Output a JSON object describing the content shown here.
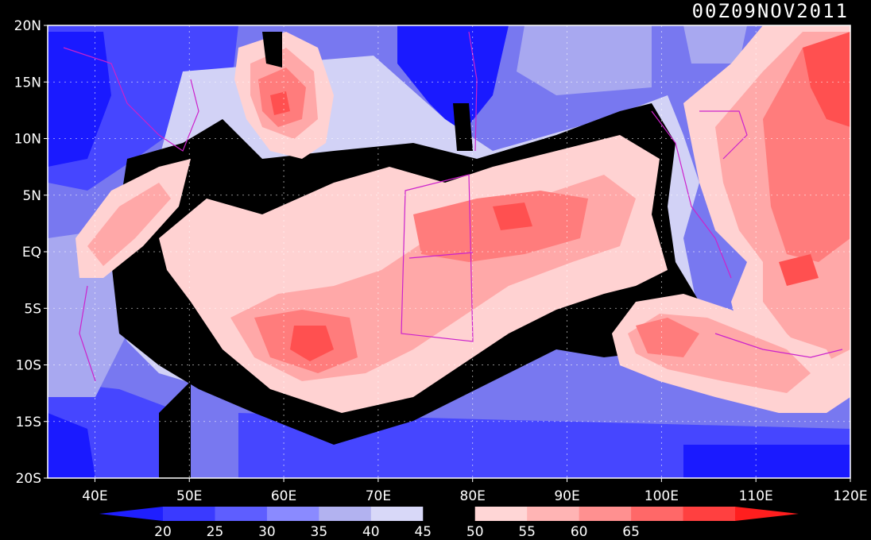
{
  "timestamp": "00Z09NOV2011",
  "map": {
    "lat_labels": [
      "20N",
      "15N",
      "10N",
      "5N",
      "EQ",
      "5S",
      "10S",
      "15S",
      "20S"
    ],
    "lat_values": [
      20,
      15,
      10,
      5,
      0,
      -5,
      -10,
      -15,
      -20
    ],
    "lon_labels": [
      "40E",
      "50E",
      "60E",
      "70E",
      "80E",
      "90E",
      "100E",
      "110E",
      "120E"
    ],
    "lon_values": [
      40,
      50,
      60,
      70,
      80,
      90,
      100,
      110,
      120
    ],
    "lon_range": [
      35,
      120
    ],
    "lat_range": [
      -20,
      20
    ]
  },
  "colorbar": {
    "labels": [
      "20",
      "25",
      "30",
      "35",
      "40",
      "45",
      "50",
      "55",
      "60",
      "65"
    ],
    "colors": [
      "#1f1fff",
      "#3a3aff",
      "#5e5eff",
      "#8a8aff",
      "#b2b2f0",
      "#d8d8f8",
      "#000000",
      "#ffd6d6",
      "#ffb4b4",
      "#ff9090",
      "#ff6868",
      "#ff4040",
      "#ff1e1e"
    ]
  },
  "colors": {
    "deep_blue": "#1a1aff",
    "blue": "#4646ff",
    "mid_blue": "#7878f0",
    "light_blue": "#a8a8f0",
    "pale_blue": "#d2d2f6",
    "black": "#000000",
    "pale_red": "#ffd2d2",
    "light_red": "#ffa8a8",
    "mid_red": "#ff7c7c",
    "red": "#ff5050",
    "deep_red": "#ff2a2a",
    "coast": "#cc22cc"
  }
}
